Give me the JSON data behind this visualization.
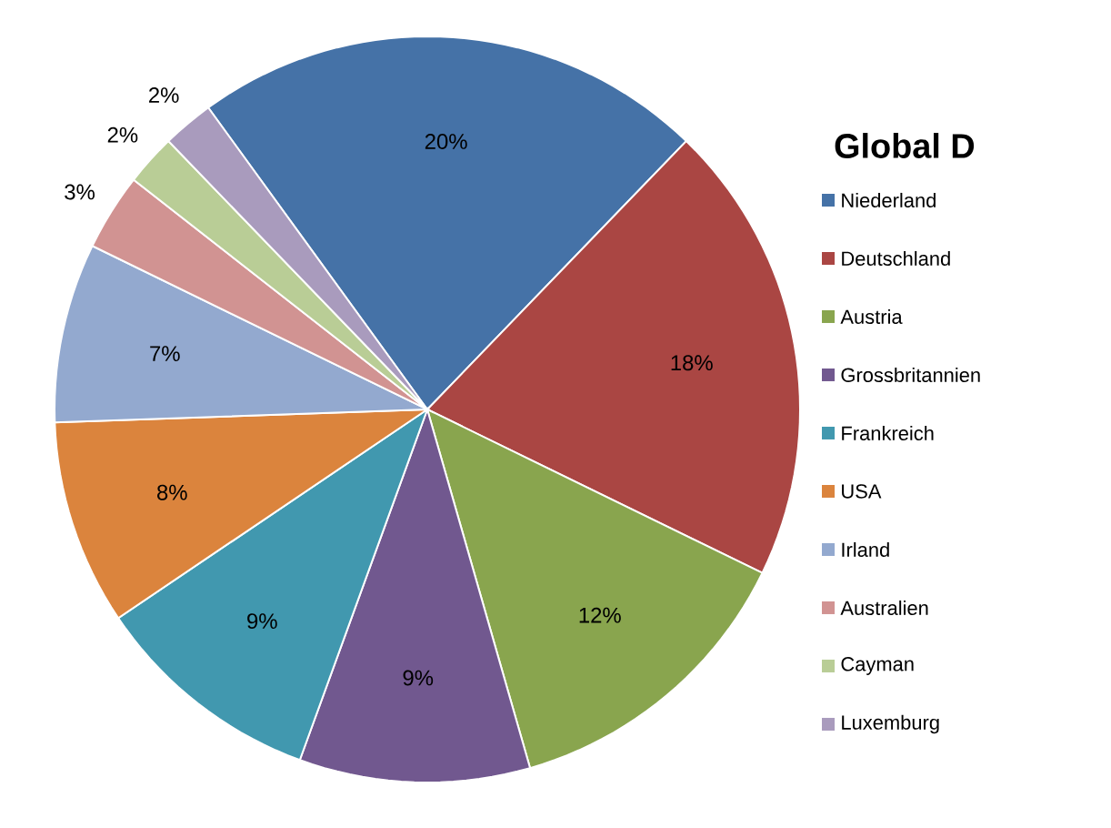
{
  "chart_data": {
    "type": "pie",
    "title": "Global D",
    "categories": [
      "Niederland",
      "Deutschland",
      "Austria",
      "Grossbritannien",
      "Frankreich",
      "USA",
      "Irland",
      "Australien",
      "Cayman",
      "Luxemburg"
    ],
    "values": [
      20,
      18,
      12,
      9,
      9,
      8,
      7,
      3,
      2,
      2
    ],
    "value_labels": [
      "20%",
      "18%",
      "12%",
      "9%",
      "9%",
      "8%",
      "7%",
      "3%",
      "2%",
      "2%"
    ],
    "colors": [
      "#4572a7",
      "#aa4643",
      "#89a54e",
      "#71588f",
      "#4198af",
      "#db843d",
      "#93a9cf",
      "#d19392",
      "#b9cd96",
      "#a99bbd"
    ],
    "legend": "right"
  }
}
